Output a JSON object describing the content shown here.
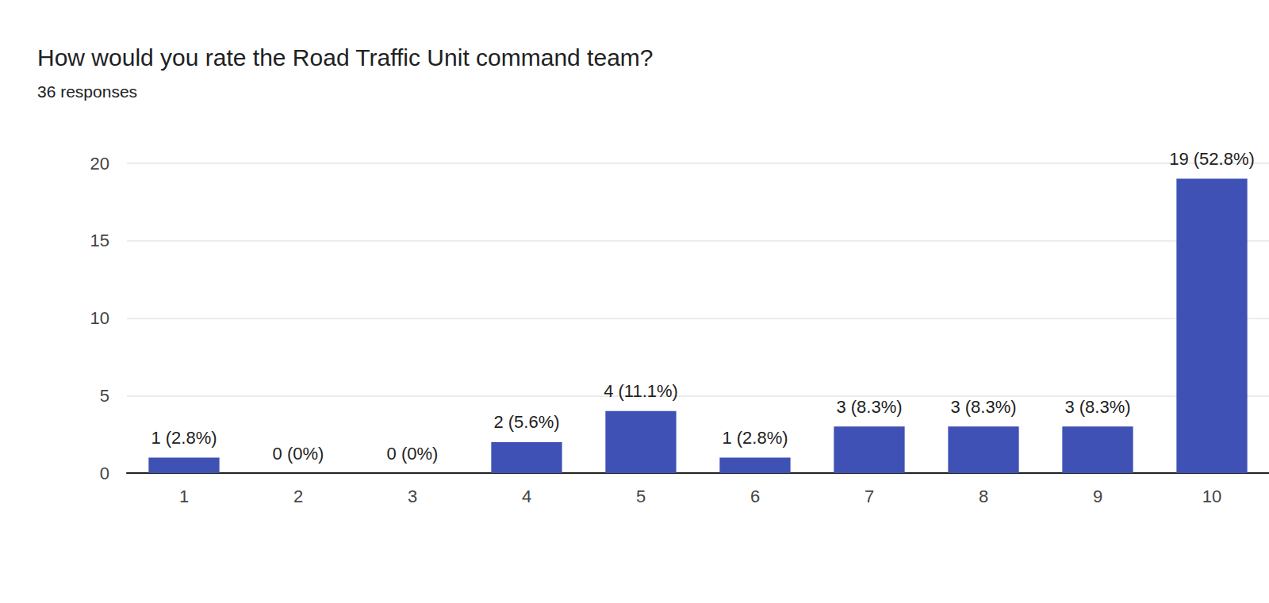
{
  "chart_data": {
    "type": "bar",
    "title": "How would you rate the Road Traffic Unit command team?",
    "subtitle": "36 responses",
    "categories": [
      "1",
      "2",
      "3",
      "4",
      "5",
      "6",
      "7",
      "8",
      "9",
      "10"
    ],
    "values": [
      1,
      0,
      0,
      2,
      4,
      1,
      3,
      3,
      3,
      19
    ],
    "value_labels": [
      "1 (2.8%)",
      "0 (0%)",
      "0 (0%)",
      "2 (5.6%)",
      "4 (11.1%)",
      "1 (2.8%)",
      "3 (8.3%)",
      "3 (8.3%)",
      "3 (8.3%)",
      "19 (52.8%)"
    ],
    "color": "#3f51b5",
    "ylim": [
      0,
      20
    ],
    "yticks": [
      0,
      5,
      10,
      15,
      20
    ],
    "grid": true,
    "data_labels": true
  }
}
